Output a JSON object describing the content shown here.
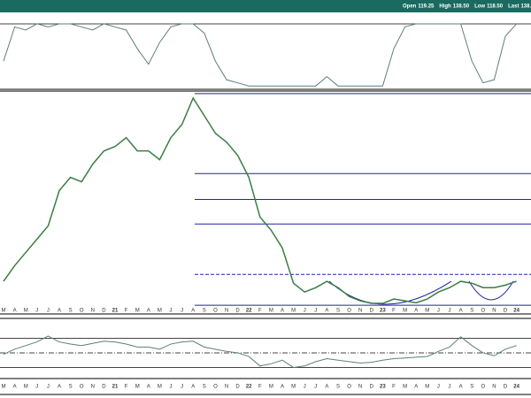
{
  "header": [
    {
      "label": "Open",
      "value": "119.25"
    },
    {
      "label": "High",
      "value": "138.50"
    },
    {
      "label": "Low",
      "value": "118.50"
    },
    {
      "label": "Last",
      "value": "138.08"
    }
  ],
  "chart_data": [
    {
      "type": "line",
      "role": "price",
      "categories": [
        "M",
        "A",
        "M",
        "J",
        "J",
        "A",
        "S",
        "O",
        "N",
        "D",
        "21",
        "F",
        "M",
        "A",
        "M",
        "J",
        "J",
        "A",
        "S",
        "O",
        "N",
        "D",
        "22",
        "F",
        "M",
        "A",
        "M",
        "J",
        "J",
        "A",
        "S",
        "O",
        "N",
        "D",
        "23",
        "F",
        "M",
        "A",
        "M",
        "J",
        "J",
        "A",
        "S",
        "O",
        "N",
        "D",
        "24"
      ],
      "values": [
        138,
        163,
        184,
        205,
        226,
        282,
        303,
        296,
        324,
        345,
        352,
        366,
        345,
        345,
        331,
        366,
        387,
        429,
        401,
        373,
        359,
        338,
        303,
        240,
        219,
        191,
        135,
        121,
        128,
        138,
        128,
        114,
        107,
        103,
        103,
        110,
        107,
        104,
        110,
        121,
        128,
        138,
        135,
        128,
        128,
        132,
        138
      ],
      "color": "#3a7d44",
      "ylim": [
        96,
        440
      ],
      "reference_lines": [
        436,
        309,
        268,
        229,
        149,
        100
      ],
      "dashed_lines": [
        149
      ],
      "line_color": "#2222aa"
    },
    {
      "type": "line",
      "role": "upper-indicator",
      "values": [
        40,
        95,
        90,
        100,
        95,
        100,
        100,
        95,
        90,
        100,
        95,
        90,
        60,
        35,
        70,
        95,
        100,
        100,
        85,
        40,
        10,
        5,
        0,
        0,
        0,
        0,
        0,
        0,
        0,
        15,
        0,
        0,
        0,
        0,
        0,
        60,
        95,
        100,
        100,
        100,
        100,
        100,
        40,
        5,
        10,
        80,
        100
      ],
      "color": "#5f7f7a",
      "ylim": [
        -4,
        117
      ],
      "reference_lines": [
        100
      ]
    },
    {
      "type": "line",
      "role": "lower-indicator",
      "values": [
        48,
        55,
        60,
        65,
        73,
        65,
        62,
        60,
        63,
        66,
        65,
        62,
        58,
        58,
        55,
        62,
        65,
        66,
        58,
        55,
        52,
        50,
        45,
        32,
        35,
        40,
        30,
        32,
        38,
        42,
        40,
        38,
        36,
        37,
        40,
        42,
        43,
        44,
        45,
        52,
        58,
        72,
        60,
        50,
        46,
        55,
        60
      ],
      "color": "#5f7f7a",
      "ylim": [
        16,
        96
      ],
      "reference_lines": [
        70,
        50,
        30
      ],
      "dashed_lines": [
        50
      ]
    }
  ]
}
